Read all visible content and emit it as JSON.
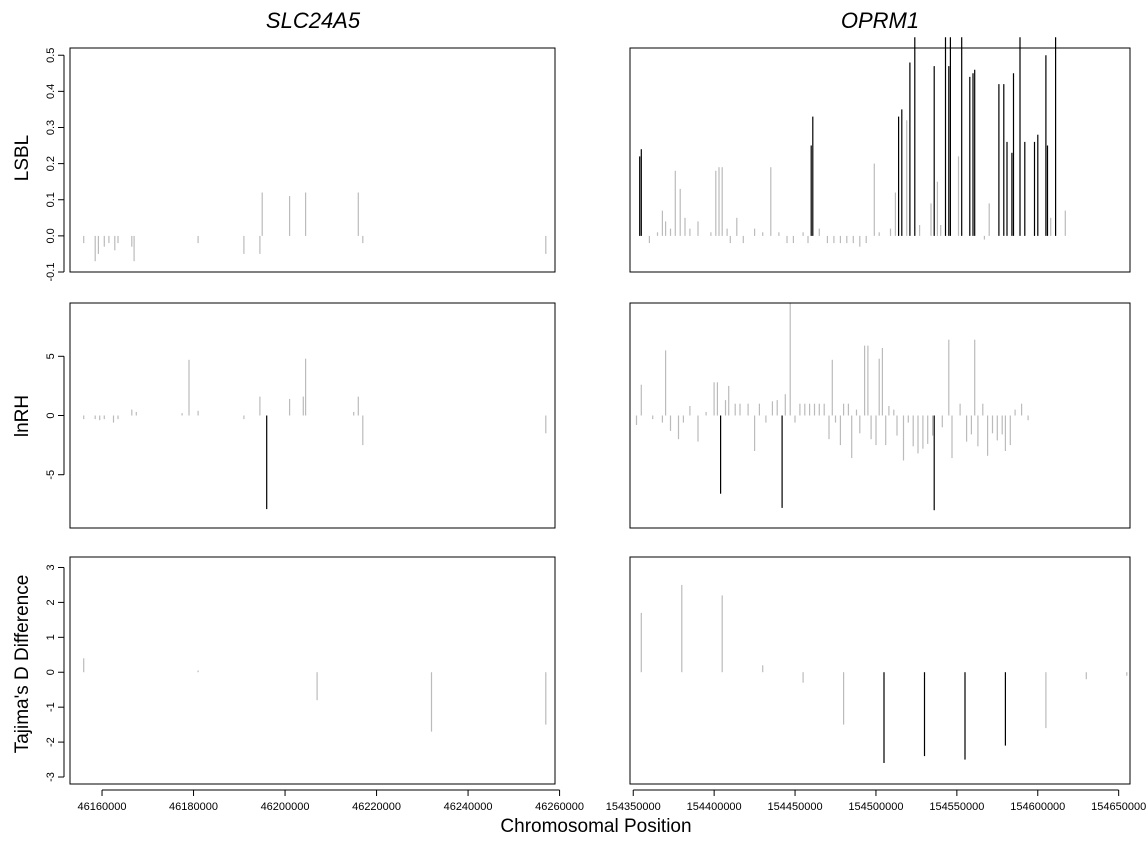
{
  "figure": {
    "xlabel": "Chromosomal Position",
    "ylabels": [
      "LSBL",
      "lnRH",
      "Tajima's D Difference"
    ]
  },
  "colors": {
    "significant": "#000000",
    "nonsignificant": "#bbbbbb"
  },
  "chart_data": [
    {
      "type": "bar",
      "gene": "SLC24A5",
      "metric": "LSBL",
      "xlim": [
        46153000,
        46259000
      ],
      "ylim": [
        -0.1,
        0.52
      ],
      "yticks": [
        "-0.1",
        "0.0",
        "0.1",
        "0.2",
        "0.3",
        "0.4",
        "0.5"
      ],
      "xticks": [],
      "title": "SLC24A5",
      "points": [
        [
          46156000,
          -0.02,
          0
        ],
        [
          46158500,
          -0.07,
          0
        ],
        [
          46159200,
          -0.05,
          0
        ],
        [
          46160500,
          -0.03,
          0
        ],
        [
          46161500,
          -0.02,
          0
        ],
        [
          46162800,
          -0.04,
          0
        ],
        [
          46163500,
          -0.02,
          0
        ],
        [
          46166500,
          -0.03,
          0
        ],
        [
          46167000,
          -0.07,
          0
        ],
        [
          46181000,
          -0.02,
          0
        ],
        [
          46191000,
          -0.05,
          0
        ],
        [
          46194500,
          -0.05,
          0
        ],
        [
          46195000,
          0.12,
          0
        ],
        [
          46201000,
          0.11,
          0
        ],
        [
          46204500,
          0.12,
          0
        ],
        [
          46216000,
          0.12,
          0
        ],
        [
          46217000,
          -0.02,
          0
        ],
        [
          46257000,
          -0.05,
          0
        ]
      ]
    },
    {
      "type": "bar",
      "gene": "OPRM1",
      "metric": "LSBL",
      "xlim": [
        154348000,
        154657000
      ],
      "ylim": [
        -0.1,
        0.52
      ],
      "yticks": [],
      "xticks": [],
      "title": "OPRM1",
      "points": [
        [
          154354000,
          0.22,
          1
        ],
        [
          154355000,
          0.24,
          1
        ],
        [
          154360000,
          -0.02,
          0
        ],
        [
          154365000,
          0.01,
          0
        ],
        [
          154368000,
          0.07,
          0
        ],
        [
          154370000,
          0.04,
          0
        ],
        [
          154373000,
          0.02,
          0
        ],
        [
          154376000,
          0.18,
          0
        ],
        [
          154379000,
          0.13,
          0
        ],
        [
          154382000,
          0.05,
          0
        ],
        [
          154385000,
          0.02,
          0
        ],
        [
          154390000,
          0.04,
          0
        ],
        [
          154398000,
          0.01,
          0
        ],
        [
          154401000,
          0.18,
          0
        ],
        [
          154403000,
          0.19,
          0
        ],
        [
          154405000,
          0.19,
          0
        ],
        [
          154408000,
          0.02,
          0
        ],
        [
          154410000,
          -0.02,
          0
        ],
        [
          154414000,
          0.05,
          0
        ],
        [
          154418000,
          -0.02,
          0
        ],
        [
          154425000,
          0.02,
          0
        ],
        [
          154430000,
          0.01,
          0
        ],
        [
          154435000,
          0.19,
          0
        ],
        [
          154440000,
          0.01,
          0
        ],
        [
          154445000,
          -0.02,
          0
        ],
        [
          154449000,
          -0.02,
          0
        ],
        [
          154455000,
          0.01,
          0
        ],
        [
          154458000,
          -0.02,
          0
        ],
        [
          154460000,
          0.25,
          1
        ],
        [
          154461000,
          0.33,
          1
        ],
        [
          154465000,
          0.02,
          0
        ],
        [
          154470000,
          -0.02,
          0
        ],
        [
          154474000,
          -0.02,
          0
        ],
        [
          154478000,
          -0.02,
          0
        ],
        [
          154482000,
          -0.02,
          0
        ],
        [
          154486000,
          -0.02,
          0
        ],
        [
          154490000,
          -0.03,
          0
        ],
        [
          154494000,
          -0.02,
          0
        ],
        [
          154499000,
          0.2,
          0
        ],
        [
          154502000,
          0.01,
          0
        ],
        [
          154509000,
          0.02,
          0
        ],
        [
          154512000,
          0.12,
          0
        ],
        [
          154514000,
          0.33,
          1
        ],
        [
          154516000,
          0.35,
          1
        ],
        [
          154519000,
          0.32,
          0
        ],
        [
          154521000,
          0.48,
          1
        ],
        [
          154524000,
          0.55,
          1
        ],
        [
          154527000,
          0.03,
          0
        ],
        [
          154534000,
          0.09,
          0
        ],
        [
          154536000,
          0.47,
          1
        ],
        [
          154538000,
          0.15,
          0
        ],
        [
          154540000,
          0.03,
          0
        ],
        [
          154543000,
          0.55,
          1
        ],
        [
          154545000,
          0.47,
          1
        ],
        [
          154546000,
          0.55,
          1
        ],
        [
          154551000,
          0.22,
          0
        ],
        [
          154553000,
          0.55,
          1
        ],
        [
          154558000,
          0.44,
          1
        ],
        [
          154560000,
          0.45,
          1
        ],
        [
          154561000,
          0.46,
          1
        ],
        [
          154567000,
          -0.01,
          0
        ],
        [
          154570000,
          0.09,
          0
        ],
        [
          154576000,
          0.42,
          1
        ],
        [
          154579000,
          0.42,
          1
        ],
        [
          154581000,
          0.26,
          1
        ],
        [
          154584000,
          0.23,
          1
        ],
        [
          154585000,
          0.45,
          1
        ],
        [
          154589000,
          0.55,
          1
        ],
        [
          154592000,
          0.26,
          1
        ],
        [
          154598000,
          0.26,
          1
        ],
        [
          154600000,
          0.28,
          1
        ],
        [
          154605000,
          0.5,
          1
        ],
        [
          154606000,
          0.25,
          1
        ],
        [
          154608000,
          0.05,
          0
        ],
        [
          154611000,
          0.55,
          1
        ],
        [
          154617000,
          0.07,
          0
        ]
      ]
    },
    {
      "type": "bar",
      "gene": "SLC24A5",
      "metric": "lnRH",
      "xlim": [
        46153000,
        46259000
      ],
      "ylim": [
        -9.5,
        9.5
      ],
      "yticks": [
        "-5",
        "0",
        "5"
      ],
      "xticks": [],
      "title": "",
      "points": [
        [
          46156000,
          -0.3,
          0
        ],
        [
          46158500,
          -0.3,
          0
        ],
        [
          46159500,
          -0.4,
          0
        ],
        [
          46160500,
          -0.3,
          0
        ],
        [
          46162500,
          -0.6,
          0
        ],
        [
          46163500,
          -0.3,
          0
        ],
        [
          46166500,
          0.5,
          0
        ],
        [
          46167500,
          0.3,
          0
        ],
        [
          46177500,
          0.2,
          0
        ],
        [
          46179000,
          4.7,
          0
        ],
        [
          46181000,
          0.4,
          0
        ],
        [
          46191000,
          -0.3,
          0
        ],
        [
          46194500,
          1.6,
          0
        ],
        [
          46196000,
          -7.9,
          1
        ],
        [
          46201000,
          1.4,
          0
        ],
        [
          46204000,
          1.6,
          0
        ],
        [
          46204500,
          4.8,
          0
        ],
        [
          46215000,
          0.3,
          0
        ],
        [
          46216000,
          1.6,
          0
        ],
        [
          46217000,
          -2.5,
          0
        ],
        [
          46257000,
          -1.5,
          0
        ]
      ]
    },
    {
      "type": "bar",
      "gene": "OPRM1",
      "metric": "lnRH",
      "xlim": [
        154348000,
        154657000
      ],
      "ylim": [
        -9.5,
        9.5
      ],
      "yticks": [],
      "xticks": [],
      "title": "",
      "points": [
        [
          154352000,
          -0.8,
          0
        ],
        [
          154355000,
          2.6,
          0
        ],
        [
          154362000,
          -0.3,
          0
        ],
        [
          154368000,
          -0.6,
          0
        ],
        [
          154370000,
          5.5,
          0
        ],
        [
          154373000,
          -1.3,
          0
        ],
        [
          154378000,
          -2.0,
          0
        ],
        [
          154381000,
          -0.6,
          0
        ],
        [
          154385000,
          0.8,
          0
        ],
        [
          154390000,
          -2.2,
          0
        ],
        [
          154395000,
          0.3,
          0
        ],
        [
          154400000,
          2.8,
          0
        ],
        [
          154402000,
          2.8,
          0
        ],
        [
          154404000,
          -6.6,
          1
        ],
        [
          154407000,
          1.3,
          0
        ],
        [
          154409000,
          2.5,
          0
        ],
        [
          154413000,
          1.0,
          0
        ],
        [
          154416000,
          1.0,
          0
        ],
        [
          154421000,
          1.0,
          0
        ],
        [
          154425000,
          -3.0,
          0
        ],
        [
          154428000,
          1.0,
          0
        ],
        [
          154432000,
          -0.6,
          0
        ],
        [
          154436000,
          1.2,
          0
        ],
        [
          154439000,
          1.3,
          0
        ],
        [
          154442000,
          -7.8,
          1
        ],
        [
          154444000,
          1.8,
          0
        ],
        [
          154447000,
          9.5,
          0
        ],
        [
          154450000,
          -0.6,
          0
        ],
        [
          154453000,
          1.0,
          0
        ],
        [
          154456000,
          1.0,
          0
        ],
        [
          154459000,
          1.0,
          0
        ],
        [
          154462000,
          1.0,
          0
        ],
        [
          154465000,
          1.0,
          0
        ],
        [
          154468000,
          1.0,
          0
        ],
        [
          154471000,
          -2.0,
          0
        ],
        [
          154473000,
          4.7,
          0
        ],
        [
          154475000,
          -0.6,
          0
        ],
        [
          154478000,
          -2.5,
          0
        ],
        [
          154480000,
          1.0,
          0
        ],
        [
          154483000,
          1.0,
          0
        ],
        [
          154485000,
          -3.6,
          0
        ],
        [
          154488000,
          0.5,
          0
        ],
        [
          154490000,
          -1.5,
          0
        ],
        [
          154493000,
          5.9,
          0
        ],
        [
          154495000,
          5.9,
          0
        ],
        [
          154497000,
          -2.0,
          0
        ],
        [
          154500000,
          -2.5,
          0
        ],
        [
          154502000,
          4.8,
          0
        ],
        [
          154504000,
          5.7,
          0
        ],
        [
          154506000,
          -2.5,
          0
        ],
        [
          154508000,
          0.8,
          0
        ],
        [
          154511000,
          0.5,
          0
        ],
        [
          154513000,
          -1.7,
          0
        ],
        [
          154517000,
          -3.8,
          0
        ],
        [
          154520000,
          -0.6,
          0
        ],
        [
          154523000,
          -2.6,
          0
        ],
        [
          154526000,
          -3.2,
          0
        ],
        [
          154529000,
          -2.8,
          0
        ],
        [
          154532000,
          -2.4,
          0
        ],
        [
          154535000,
          -1.7,
          0
        ],
        [
          154536000,
          -8.0,
          1
        ],
        [
          154541000,
          -1.0,
          0
        ],
        [
          154545000,
          6.4,
          0
        ],
        [
          154547000,
          -3.6,
          0
        ],
        [
          154552000,
          1.0,
          0
        ],
        [
          154556000,
          -2.2,
          0
        ],
        [
          154559000,
          -1.6,
          0
        ],
        [
          154561000,
          6.4,
          0
        ],
        [
          154563000,
          -2.6,
          0
        ],
        [
          154566000,
          1.0,
          0
        ],
        [
          154569000,
          -3.4,
          0
        ],
        [
          154572000,
          -1.5,
          0
        ],
        [
          154575000,
          -2.1,
          0
        ],
        [
          154578000,
          -1.6,
          0
        ],
        [
          154580000,
          -3.0,
          0
        ],
        [
          154583000,
          -2.5,
          0
        ],
        [
          154586000,
          0.5,
          0
        ],
        [
          154590000,
          1.0,
          0
        ],
        [
          154594000,
          -0.4,
          0
        ]
      ]
    },
    {
      "type": "bar",
      "gene": "SLC24A5",
      "metric": "Tajima's D Difference",
      "xlim": [
        46153000,
        46259000
      ],
      "ylim": [
        -3.2,
        3.3
      ],
      "yticks": [
        "-3",
        "-2",
        "-1",
        "0",
        "1",
        "2",
        "3"
      ],
      "xticks": [
        "46160000",
        "46180000",
        "46200000",
        "46220000",
        "46240000",
        "46260000"
      ],
      "title": "",
      "points": [
        [
          46156000,
          0.4,
          0
        ],
        [
          46181000,
          0.05,
          0
        ],
        [
          46207000,
          -0.8,
          0
        ],
        [
          46232000,
          -1.7,
          0
        ],
        [
          46257000,
          -1.5,
          0
        ]
      ]
    },
    {
      "type": "bar",
      "gene": "OPRM1",
      "metric": "Tajima's D Difference",
      "xlim": [
        154348000,
        154657000
      ],
      "ylim": [
        -3.2,
        3.3
      ],
      "yticks": [],
      "xticks": [
        "154350000",
        "154400000",
        "154450000",
        "154500000",
        "154550000",
        "154600000",
        "154650000"
      ],
      "title": "",
      "points": [
        [
          154355000,
          1.7,
          0
        ],
        [
          154380000,
          2.5,
          0
        ],
        [
          154405000,
          2.2,
          0
        ],
        [
          154430000,
          0.2,
          0
        ],
        [
          154455000,
          -0.3,
          0
        ],
        [
          154480000,
          -1.5,
          0
        ],
        [
          154505000,
          -2.6,
          1
        ],
        [
          154530000,
          -2.4,
          1
        ],
        [
          154555000,
          -2.5,
          1
        ],
        [
          154580000,
          -2.1,
          1
        ],
        [
          154605000,
          -1.6,
          0
        ],
        [
          154630000,
          -0.2,
          0
        ],
        [
          154655000,
          -0.1,
          0
        ]
      ]
    }
  ]
}
